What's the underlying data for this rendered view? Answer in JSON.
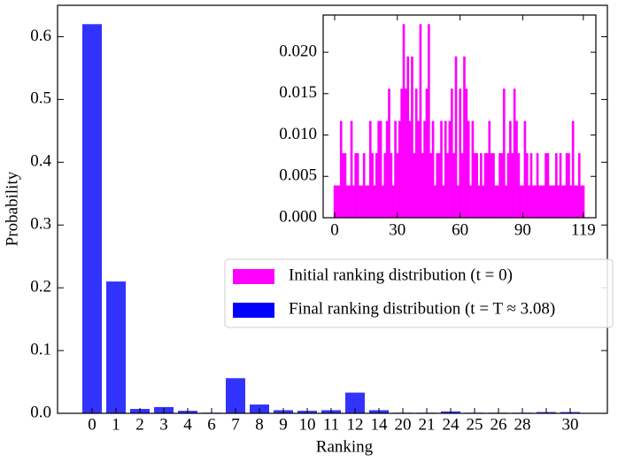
{
  "chart_data": [
    {
      "type": "bar",
      "x_label": "Ranking",
      "y_label": "Probability",
      "categories": [
        "0",
        "1",
        "2",
        "3",
        "4",
        "6",
        "7",
        "8",
        "9",
        "10",
        "11",
        "12",
        "14",
        "20",
        "21",
        "24",
        "25",
        "26",
        "28",
        null,
        "30"
      ],
      "series": [
        {
          "name": "Final ranking distribution (t = T ≈ 3.08)",
          "color": "#0000ff",
          "values": [
            0.62,
            0.21,
            0.007,
            0.01,
            0.004,
            0.001,
            0.056,
            0.014,
            0.005,
            0.004,
            0.005,
            0.033,
            0.005,
            0.001,
            0.001,
            0.003,
            0.001,
            0.001,
            0.001,
            0.002,
            0.002
          ]
        }
      ],
      "ylim": [
        0,
        0.65
      ],
      "yticks": [
        {
          "value": 0,
          "label": "0.0"
        },
        0.1,
        0.2,
        0.3,
        0.4,
        0.5,
        0.6
      ],
      "legend": "center right"
    },
    {
      "type": "histogram",
      "inset": true,
      "series": [
        {
          "name": "Initial ranking distribution (t = 0)",
          "color": "#ff00ff",
          "values": [
            0.0039,
            0.0039,
            0.0039,
            0.0117,
            0.0078,
            0.0078,
            0.0039,
            0.0039,
            0.0117,
            0.0039,
            0.0078,
            0.0078,
            0.0039,
            0.0039,
            0.0078,
            0.0039,
            0.0039,
            0.0117,
            0.0078,
            0.0039,
            0.0078,
            0.0117,
            0.0117,
            0.0039,
            0.0078,
            0.0117,
            0.0156,
            0.0078,
            0.0039,
            0.0117,
            0.0078,
            0.0117,
            0.0156,
            0.0234,
            0.0156,
            0.0195,
            0.0117,
            0.0195,
            0.0078,
            0.0156,
            0.0117,
            0.0234,
            0.0078,
            0.0117,
            0.0156,
            0.0234,
            0.0078,
            0.0117,
            0.0039,
            0.0078,
            0.0078,
            0.0117,
            0.0039,
            0.0117,
            0.0078,
            0.0117,
            0.0156,
            0.0078,
            0.0195,
            0.0039,
            0.0156,
            0.0078,
            0.0195,
            0.0156,
            0.0117,
            0.0039,
            0.0117,
            0.0078,
            0.0078,
            0.0039,
            0.0078,
            0.0039,
            0.0078,
            0.0078,
            0.0117,
            0.0078,
            0.0078,
            0.0039,
            0.0039,
            0.0078,
            0.0078,
            0.0156,
            0.0039,
            0.0078,
            0.0117,
            0.0078,
            0.0156,
            0.0117,
            0.0078,
            0.0039,
            0.0039,
            0.0117,
            0.0078,
            0.0039,
            0.0078,
            0.0039,
            0.0039,
            0.0078,
            0.0039,
            0.0039,
            0.0039,
            0.0078,
            0.0078,
            0.0039,
            0.0039,
            0.0039,
            0.0078,
            0.0039,
            0.0078,
            0.0039,
            0.0039,
            0.0078,
            0.0078,
            0.0039,
            0.0117,
            0.0039,
            0.0039,
            0.0078,
            0.0039,
            0.0039
          ]
        }
      ],
      "xlim": [
        -5.5,
        125
      ],
      "xticks": [
        0,
        30,
        60,
        90,
        119
      ],
      "ylim": [
        0,
        0.0245
      ],
      "yticks": [
        {
          "value": 0,
          "label": "0.000"
        },
        0.005,
        {
          "value": 0.01,
          "label": "0.010"
        },
        0.015,
        {
          "value": 0.02,
          "label": "0.020"
        }
      ]
    }
  ]
}
